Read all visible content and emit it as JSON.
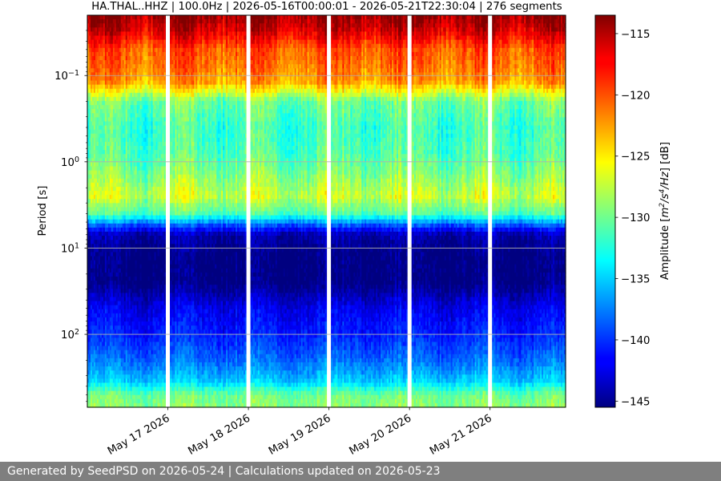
{
  "chart_data": {
    "type": "heatmap",
    "title": "HA.THAL..HHZ | 100.0Hz | 2026-05-16T00:00:01 - 2026-05-21T22:30:04 | 276 segments",
    "ylabel": "Period [s]",
    "y_scale": "log",
    "y_direction": "inverted",
    "ylim_period_s": [
      0.02,
      700
    ],
    "y_ticks": [
      {
        "value": 0.1,
        "base": "10",
        "exp": "−1"
      },
      {
        "value": 1,
        "base": "10",
        "exp": "0"
      },
      {
        "value": 10,
        "base": "10",
        "exp": "1"
      },
      {
        "value": 100,
        "base": "10",
        "exp": "2"
      }
    ],
    "x_range": [
      "2026-05-16T00:00:01",
      "2026-05-21T22:30:04"
    ],
    "x_ticks": [
      {
        "label": "May 17 2026",
        "date": "2026-05-17"
      },
      {
        "label": "May 18 2026",
        "date": "2026-05-18"
      },
      {
        "label": "May 19 2026",
        "date": "2026-05-19"
      },
      {
        "label": "May 20 2026",
        "date": "2026-05-20"
      },
      {
        "label": "May 21 2026",
        "date": "2026-05-21"
      }
    ],
    "data_gaps": [
      "2026-05-17",
      "2026-05-18",
      "2026-05-19",
      "2026-05-20",
      "2026-05-21"
    ],
    "grid": "horizontal",
    "colorbar": {
      "label_prefix": "Amplitude [",
      "label_unit_html": "m<tspan baseline-shift='super' font-size='9'>2</tspan>/s<tspan baseline-shift='super' font-size='9'>4</tspan>/Hz",
      "label_suffix": "] [dB]",
      "colormap": "jet",
      "range_db": [
        -145.5,
        -113.5
      ],
      "ticks": [
        -115,
        -120,
        -125,
        -130,
        -135,
        -140,
        -145
      ],
      "tick_labels": [
        "−115",
        "−120",
        "−125",
        "−130",
        "−135",
        "−140",
        "−145"
      ]
    },
    "period_profile_db": [
      {
        "period_s": 0.02,
        "db": -114
      },
      {
        "period_s": 0.03,
        "db": -116
      },
      {
        "period_s": 0.05,
        "db": -120
      },
      {
        "period_s": 0.08,
        "db": -121
      },
      {
        "period_s": 0.12,
        "db": -122.5
      },
      {
        "period_s": 0.2,
        "db": -130
      },
      {
        "period_s": 0.4,
        "db": -131.5
      },
      {
        "period_s": 0.8,
        "db": -131
      },
      {
        "period_s": 1.5,
        "db": -129
      },
      {
        "period_s": 2.5,
        "db": -127
      },
      {
        "period_s": 4,
        "db": -131
      },
      {
        "period_s": 5.5,
        "db": -139
      },
      {
        "period_s": 7,
        "db": -144
      },
      {
        "period_s": 12,
        "db": -145.5
      },
      {
        "period_s": 25,
        "db": -145.5
      },
      {
        "period_s": 50,
        "db": -142
      },
      {
        "period_s": 100,
        "db": -140.5
      },
      {
        "period_s": 200,
        "db": -138
      },
      {
        "period_s": 350,
        "db": -135
      },
      {
        "period_s": 500,
        "db": -130
      },
      {
        "period_s": 700,
        "db": -129
      }
    ]
  },
  "footer": {
    "text": "Generated by SeedPSD on 2026-05-24 | Calculations updated on 2026-05-23"
  }
}
